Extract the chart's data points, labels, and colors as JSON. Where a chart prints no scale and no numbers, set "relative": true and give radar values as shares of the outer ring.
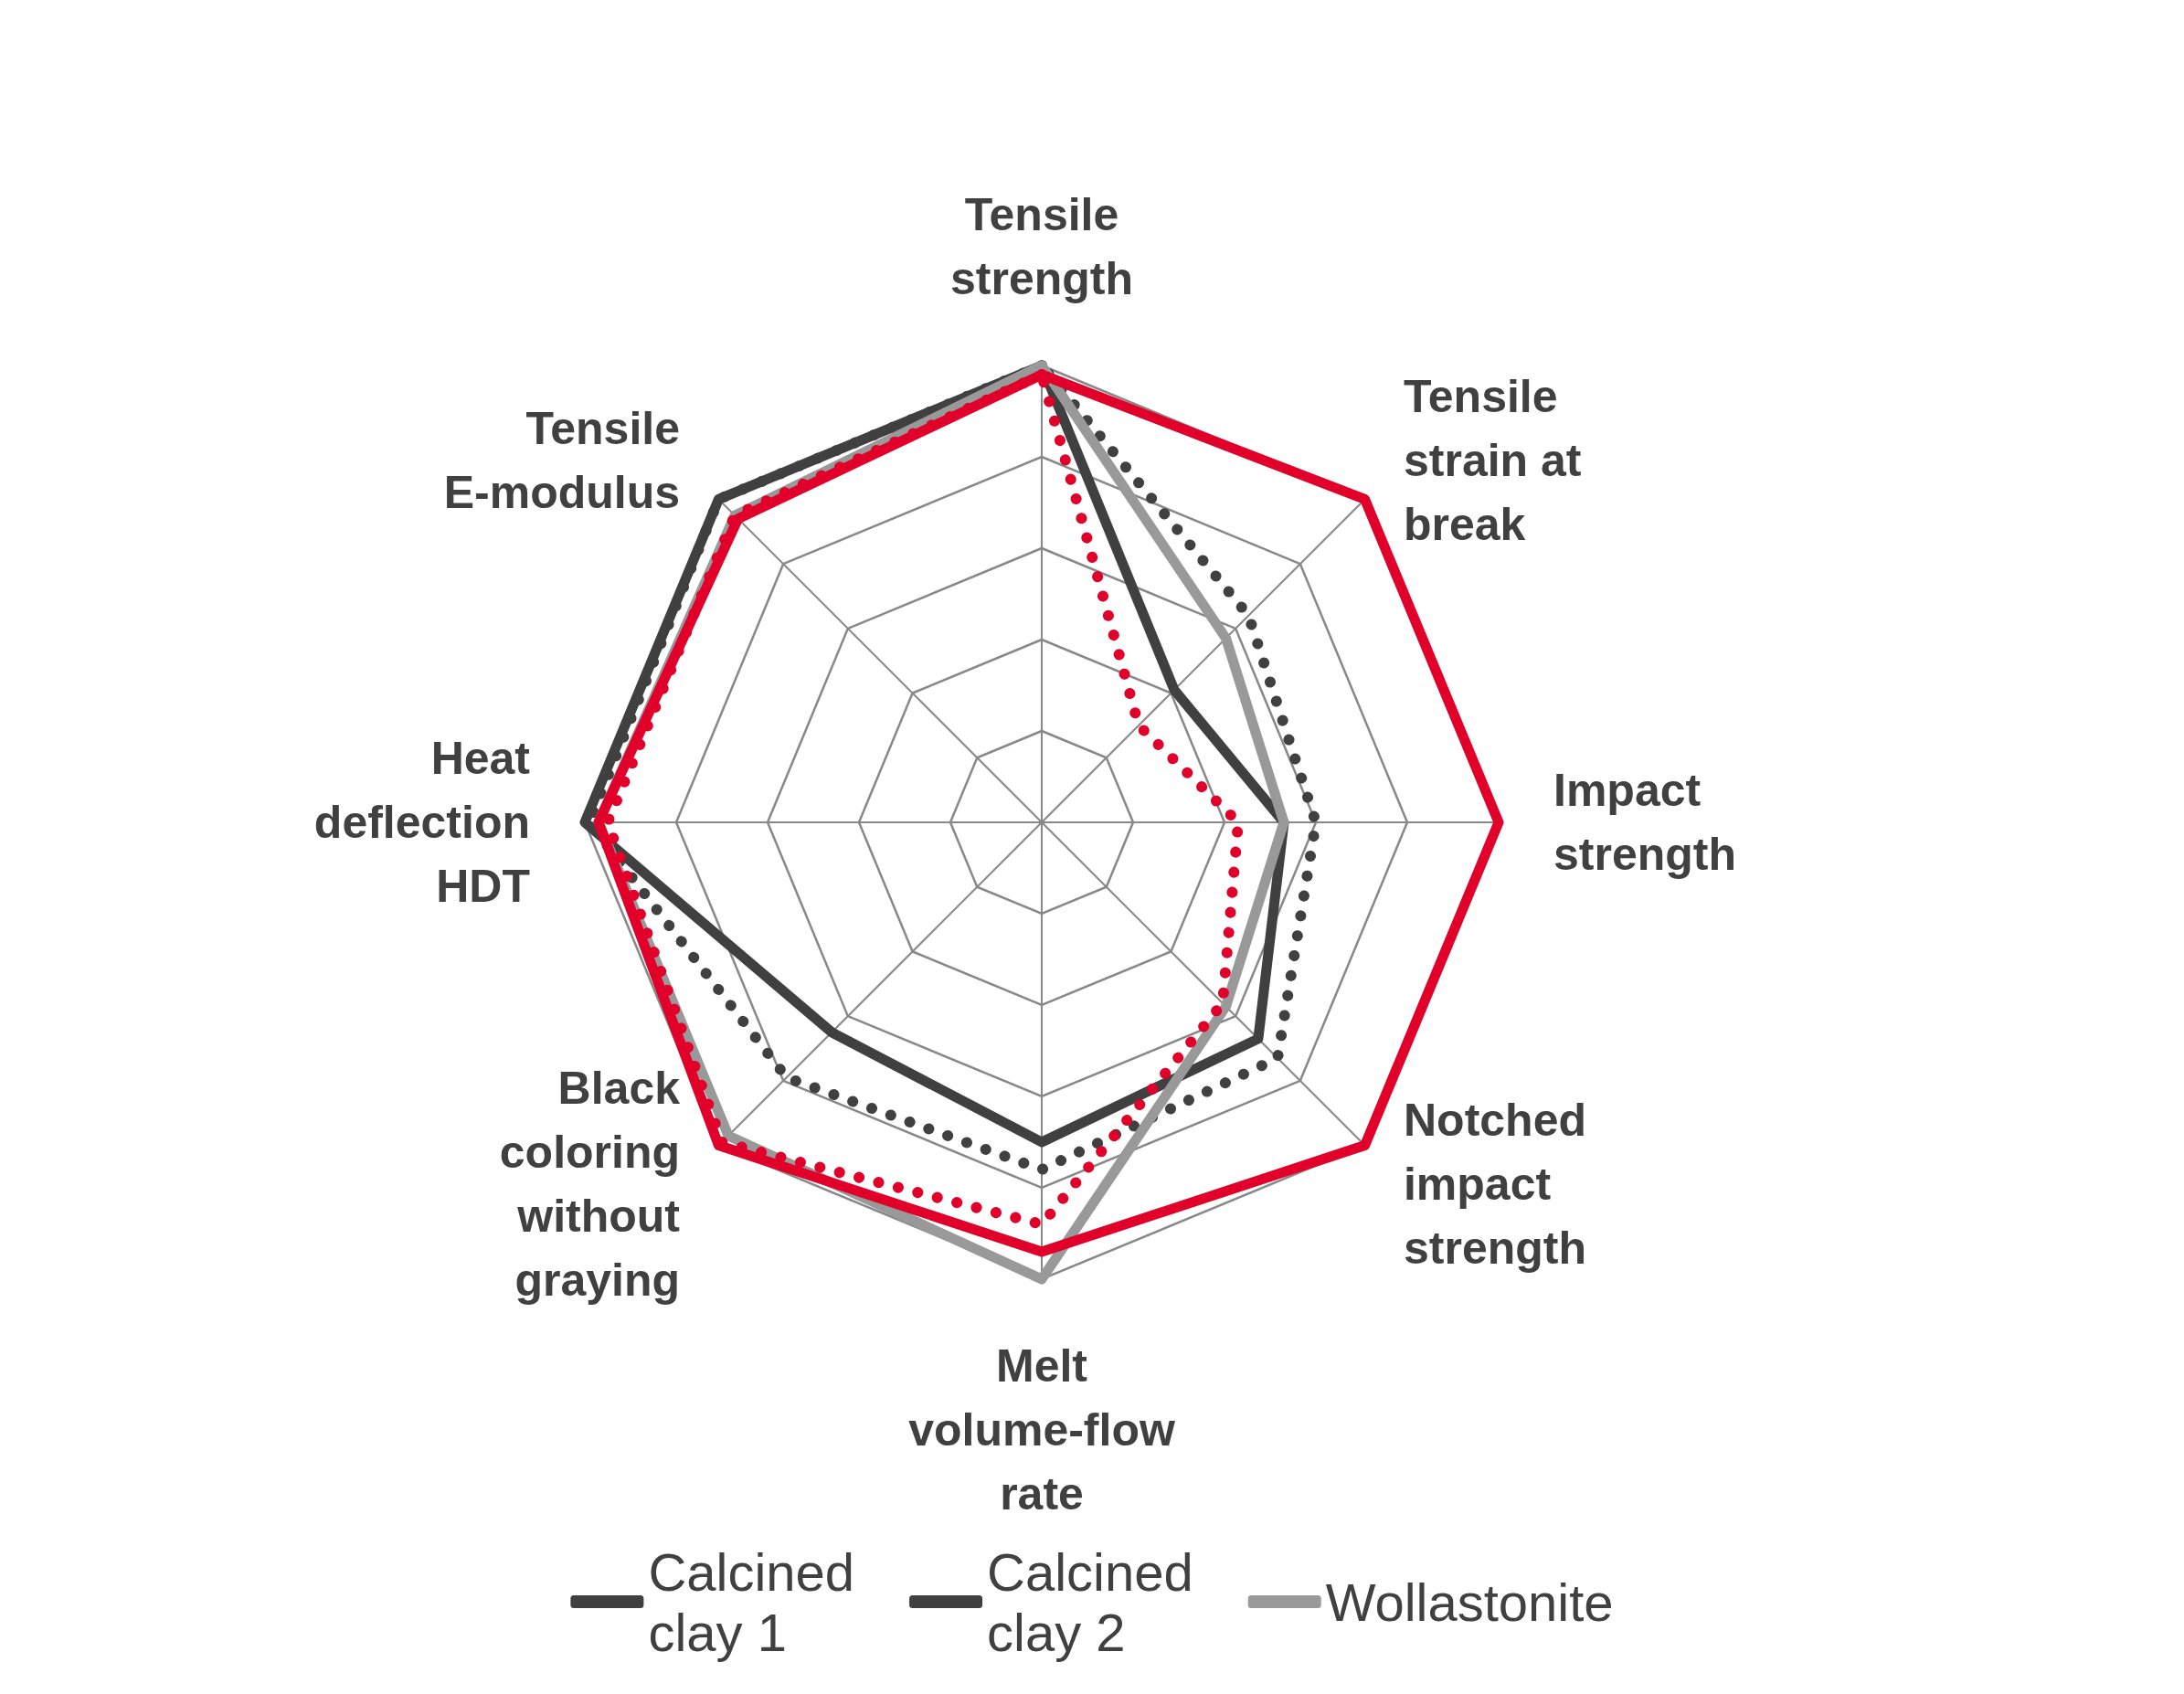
{
  "chart_data": {
    "type": "radar",
    "relative": true,
    "legend": "bottom",
    "categories": [
      "Tensile strength",
      "Tensile strain at break",
      "Impact strength",
      "Notched impact strength",
      "Melt volume-flow rate",
      "Black coloring without graying",
      "Heat deflection HDT",
      "Tensile E-modulus"
    ],
    "series": [
      {
        "name": "Calcined clay 1",
        "color": "#404040",
        "line_style": "solid",
        "values": [
          1.0,
          0.41,
          0.53,
          0.67,
          0.7,
          0.65,
          1.0,
          1.0
        ]
      },
      {
        "name": "Calcined clay 2",
        "color": "#404040",
        "line_style": "dotted",
        "values": [
          1.0,
          0.64,
          0.6,
          0.73,
          0.76,
          0.79,
          0.99,
          1.0
        ]
      },
      {
        "name": "Wollastonite",
        "color": "#999999",
        "line_style": "solid",
        "values": [
          1.0,
          0.57,
          0.53,
          0.57,
          1.0,
          0.97,
          0.97,
          0.95
        ]
      },
      {
        "color": "#e0002a",
        "line_style": "dotted",
        "values": [
          0.98,
          0.3,
          0.43,
          0.56,
          0.88,
          0.99,
          0.95,
          0.95
        ]
      },
      {
        "color": "#e0002a",
        "line_style": "solid",
        "values": [
          0.98,
          1.0,
          1.0,
          1.0,
          0.94,
          1.0,
          0.97,
          0.94
        ]
      }
    ]
  }
}
